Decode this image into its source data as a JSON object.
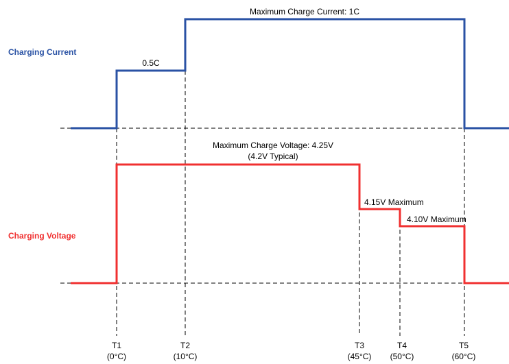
{
  "colors": {
    "current": "#2a52a4",
    "voltage": "#f03030",
    "guide": "#000000"
  },
  "current_label": "Charging Current",
  "voltage_label": "Charging Voltage",
  "current_annotations": {
    "half": "0.5C",
    "max": "Maximum Charge Current: 1C"
  },
  "voltage_annotations": {
    "max_line1": "Maximum Charge Voltage: 4.25V",
    "max_line2": "(4.2V Typical)",
    "v415": "4.15V Maximum",
    "v410": "4.10V Maximum"
  },
  "temperature_points": [
    {
      "name": "T1",
      "temp": "(0°C)"
    },
    {
      "name": "T2",
      "temp": "(10°C)"
    },
    {
      "name": "T3",
      "temp": "(45°C)"
    },
    {
      "name": "T4",
      "temp": "(50°C)"
    },
    {
      "name": "T5",
      "temp": "(60°C)"
    }
  ]
}
